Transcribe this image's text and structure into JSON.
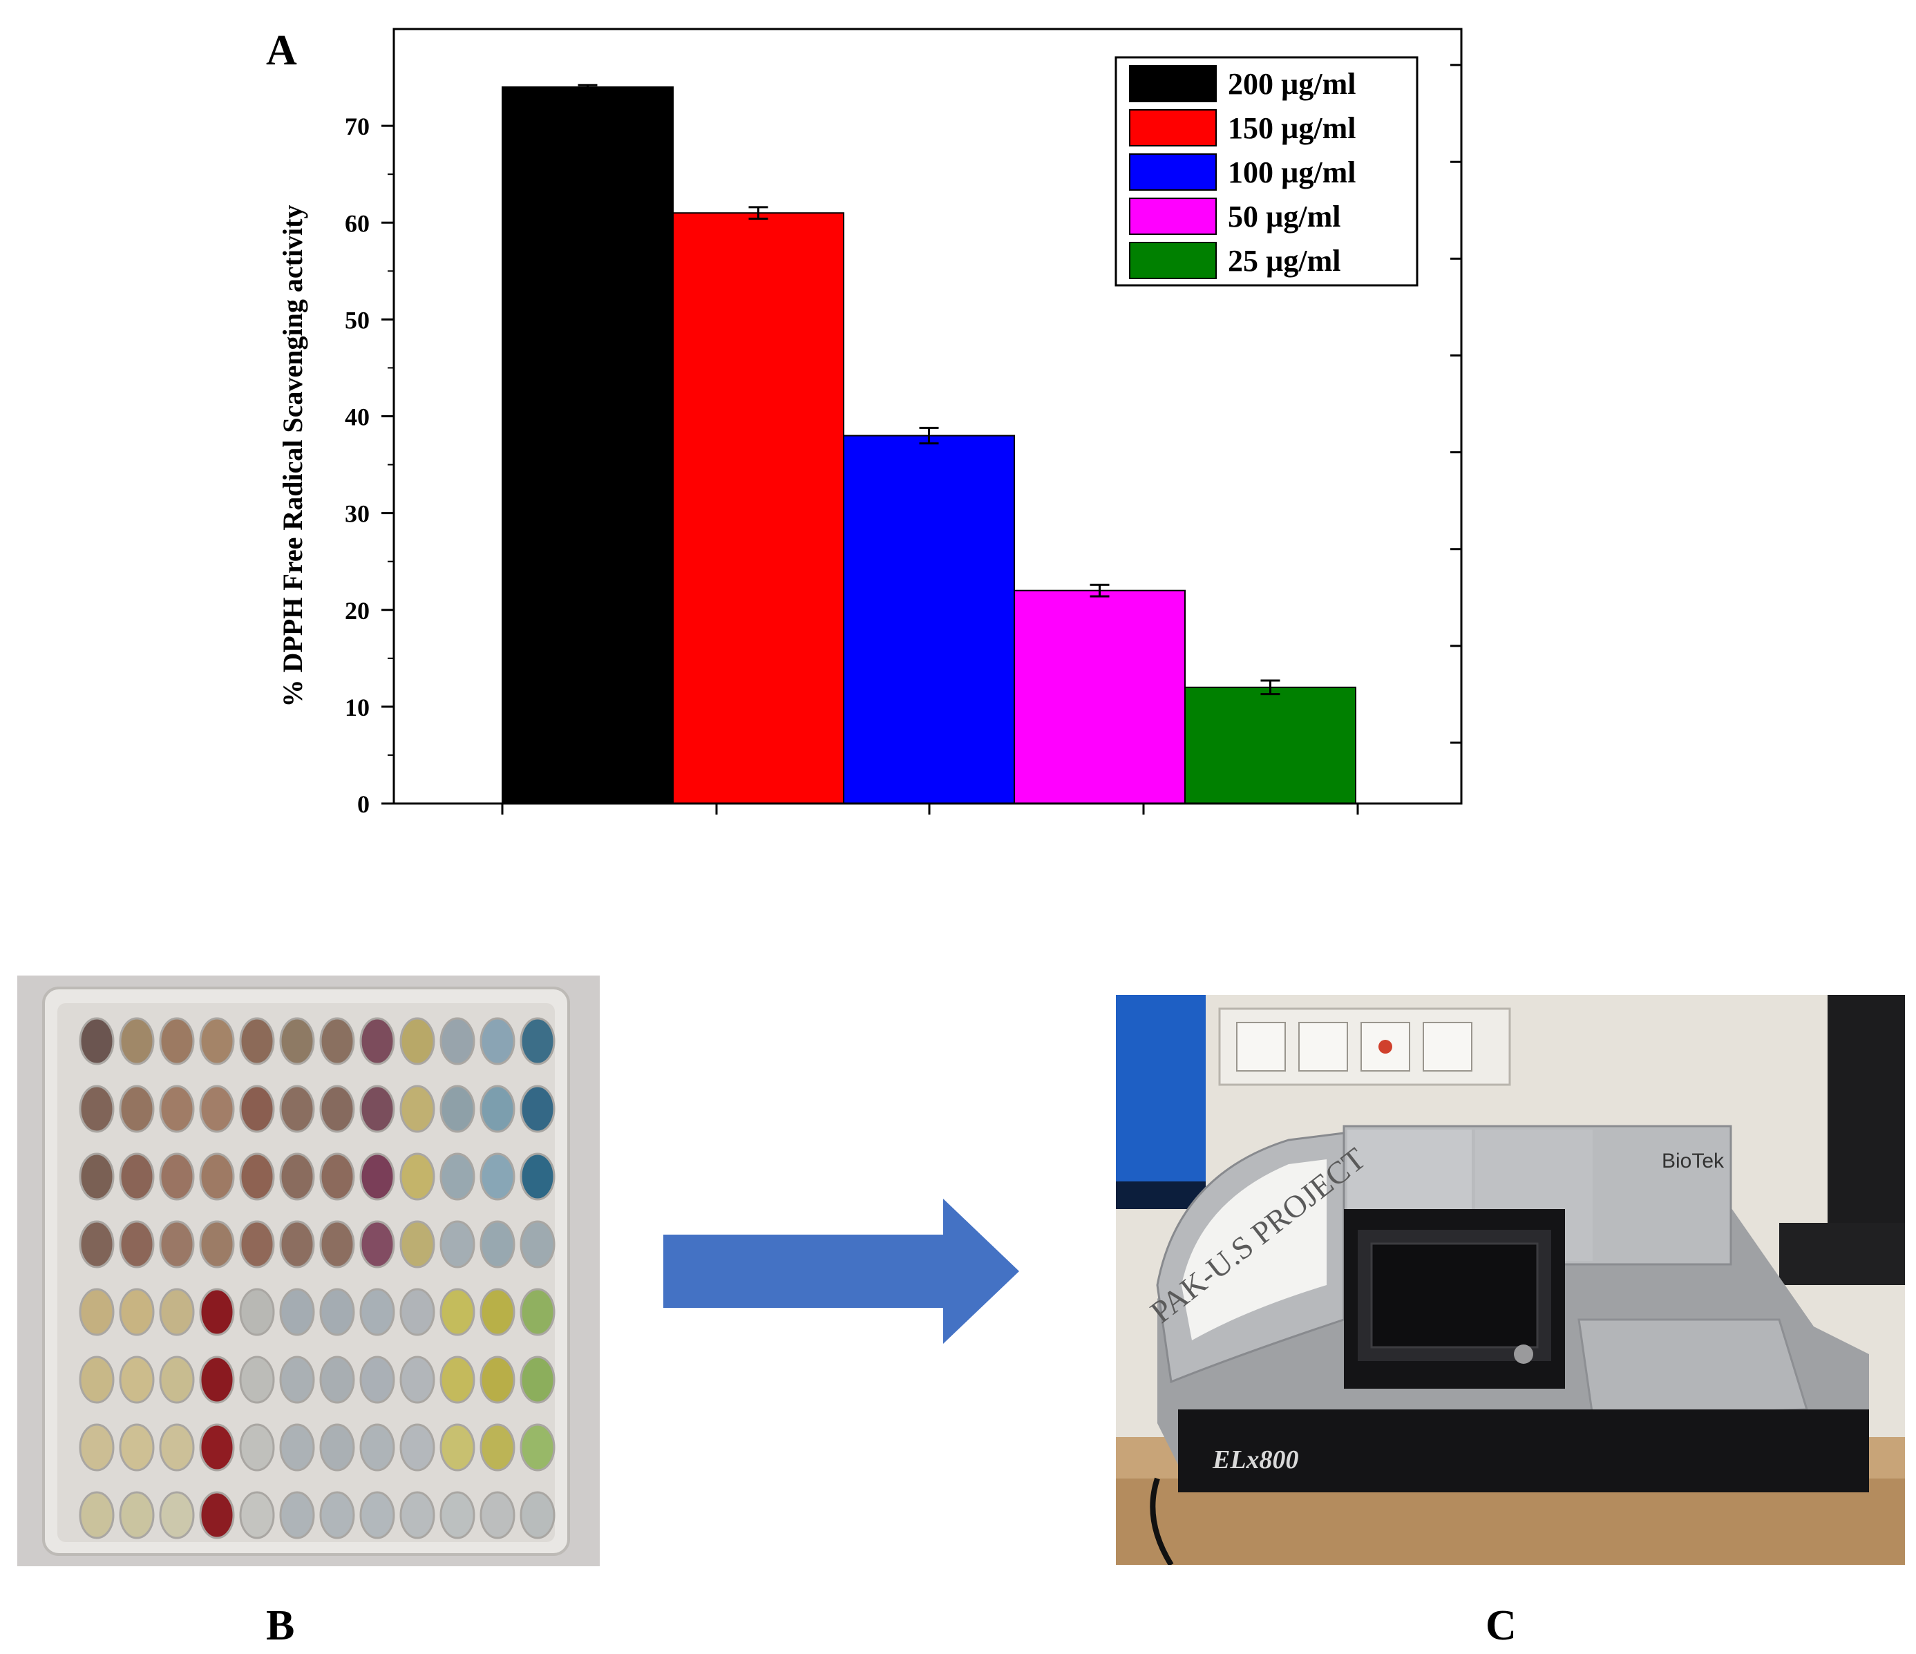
{
  "panels": {
    "a_label": "A",
    "b_label": "B",
    "c_label": "C"
  },
  "chart_data": {
    "type": "bar",
    "title": "",
    "xlabel": "",
    "ylabel": "% DPPH Free Radical Scavenging activity",
    "ylim": [
      0,
      80
    ],
    "yticks": [
      0,
      10,
      20,
      30,
      40,
      50,
      60,
      70
    ],
    "grid": false,
    "legend_position": "top-right",
    "series": [
      {
        "name": "200 µg/ml",
        "value": 74,
        "error": 0.2,
        "color": "#000000"
      },
      {
        "name": "150 µg/ml",
        "value": 61,
        "error": 0.6,
        "color": "#ff0000"
      },
      {
        "name": "100 µg/ml",
        "value": 38,
        "error": 0.8,
        "color": "#0000ff"
      },
      {
        "name": "50 µg/ml",
        "value": 22,
        "error": 0.6,
        "color": "#ff00ff"
      },
      {
        "name": "25 µg/ml",
        "value": 12,
        "error": 0.7,
        "color": "#008000"
      }
    ]
  },
  "plate": {
    "rows": [
      [
        "#6b5550",
        "#a08868",
        "#9c7a62",
        "#a48468",
        "#8c6a58",
        "#8e7a64",
        "#8a7060",
        "#7c4c5c",
        "#b8a868",
        "#98a4ac",
        "#8aa4b4",
        "#3c6e88"
      ],
      [
        "#806458",
        "#947460",
        "#a07c66",
        "#a27e68",
        "#8a5e50",
        "#8a6e60",
        "#866a5e",
        "#7a4e5c",
        "#c0b072",
        "#8ea0a8",
        "#7c9eae",
        "#346886"
      ],
      [
        "#7a6054",
        "#8a6456",
        "#9a7462",
        "#9e7a64",
        "#8e6252",
        "#8a6c5e",
        "#8c6a5c",
        "#7a3e58",
        "#c4b46a",
        "#98a8b0",
        "#88a6b6",
        "#2e6886"
      ],
      [
        "#806458",
        "#8c6658",
        "#9a7866",
        "#9c7c66",
        "#906858",
        "#8c6e60",
        "#8c6e60",
        "#824c62",
        "#bcae72",
        "#a4aeb4",
        "#98a8b0",
        "#9eaab0"
      ],
      [
        "#c4b080",
        "#c8b482",
        "#c4b488",
        "#8a1a20",
        "#b8b8b4",
        "#a4acb2",
        "#a4acb2",
        "#a8b0b6",
        "#b0b4b8",
        "#c4bc5c",
        "#b8b048",
        "#90b060"
      ],
      [
        "#c8b888",
        "#ccbc8c",
        "#c8bc90",
        "#8a1a20",
        "#bcbcb8",
        "#aab0b4",
        "#a8aeb2",
        "#aab0b6",
        "#b2b6ba",
        "#c4ba5c",
        "#b8ae48",
        "#8cae5c"
      ],
      [
        "#ccbe94",
        "#cec094",
        "#ccc098",
        "#901c22",
        "#c0c0bc",
        "#acb2b6",
        "#aab0b4",
        "#aeb4b8",
        "#b4b8bc",
        "#c8c070",
        "#bcb456",
        "#98b868"
      ],
      [
        "#cac29c",
        "#cac4a0",
        "#ccc8ac",
        "#8c1c22",
        "#c4c4c0",
        "#aeb4b8",
        "#b0b6ba",
        "#b2b8bc",
        "#b8bcbe",
        "#bcc0c0",
        "#bcbebe",
        "#b8bcbc"
      ]
    ]
  },
  "reader": {
    "label_text": "PAK-U.S PROJECT",
    "brand_text": "BioTek",
    "model_text": "ELx800"
  }
}
